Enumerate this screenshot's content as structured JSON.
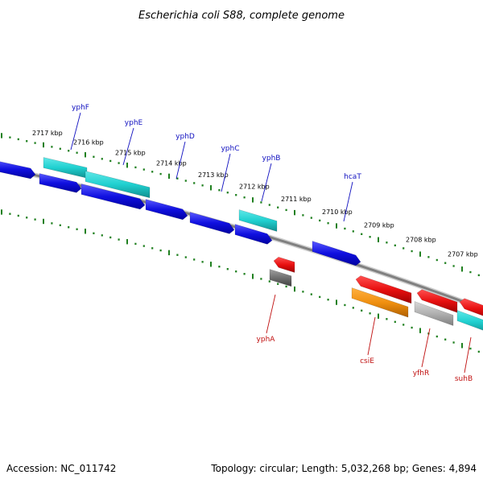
{
  "title": "Escherichia coli S88, complete genome",
  "footer": {
    "accession": "Accession: NC_011742",
    "summary": "Topology: circular; Length: 5,032,268 bp; Genes: 4,894"
  },
  "colors": {
    "backbone": "#808080",
    "ticks": "#208020",
    "forward_label": "#1010c0",
    "reverse_label": "#c01010",
    "blue": "#1010e0",
    "cyan": "#20d0d0",
    "red": "#e81010",
    "orange": "#f09010",
    "gray": "#b0b0b0",
    "darkgray": "#707070"
  },
  "ruler_labels": [
    "2717 kbp",
    "2716 kbp",
    "2715 kbp",
    "2714 kbp",
    "2713 kbp",
    "2712 kbp",
    "2711 kbp",
    "2710 kbp",
    "2709 kbp",
    "2708 kbp",
    "2707 kbp"
  ],
  "forward_genes": [
    "yphF",
    "yphE",
    "yphD",
    "yphC",
    "yphB",
    "hcaT"
  ],
  "reverse_genes": [
    "yphA",
    "csiE",
    "yfhR",
    "suhB"
  ]
}
